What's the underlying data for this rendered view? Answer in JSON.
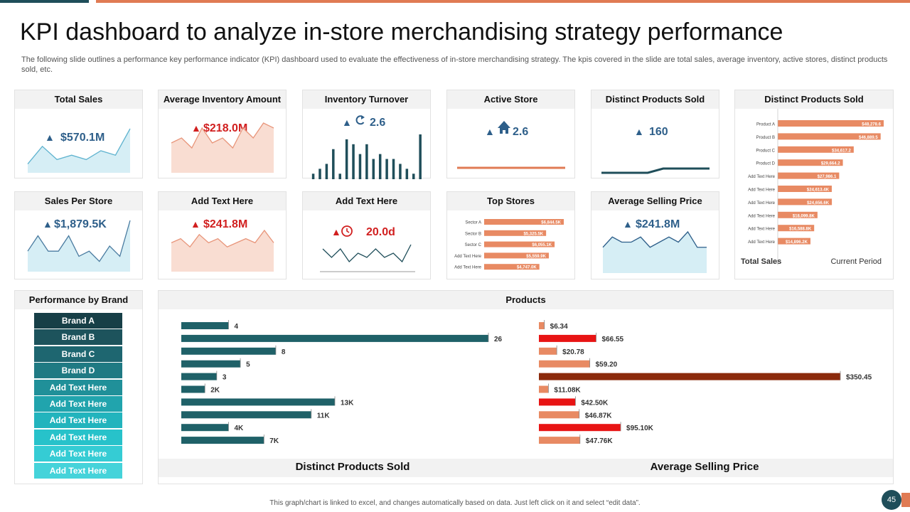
{
  "page": {
    "title": "KPI dashboard to analyze in-store merchandising strategy performance",
    "subtitle": "The following slide outlines a performance key performance indicator (KPI) dashboard used to evaluate the effectiveness of in-store merchandising strategy. The kpis covered in the slide are total sales, average inventory, active stores, distinct products sold, etc.",
    "footer_note": "This graph/chart is linked to excel, and changes automatically based on data. Just left click on it and select “edit data”.",
    "page_number": "45"
  },
  "colors": {
    "dark_teal": "#1f4e5a",
    "accent_orange": "#e07b54",
    "kpi_blue": "#2e5f8a",
    "kpi_red": "#d11f1f",
    "light_blue_fill": "#d6eef5",
    "light_peach_fill": "#f9ddd2",
    "dark_red": "#8b2a0c"
  },
  "cards": {
    "total_sales": {
      "title": "Total Sales",
      "value": "$570.1M",
      "arrow": "▲"
    },
    "avg_inventory": {
      "title": "Average Inventory Amount",
      "value": "$218.0M",
      "arrow": "▲"
    },
    "inventory_turnover": {
      "title": "Inventory Turnover",
      "value": "2.6",
      "arrow": "▲",
      "icon": "refresh-icon"
    },
    "active_store": {
      "title": "Active Store",
      "value": "2.6",
      "arrow": "▲",
      "icon": "home-icon"
    },
    "distinct_products": {
      "title": "Distinct Products Sold",
      "value": "160",
      "arrow": "▲"
    },
    "sales_per_store": {
      "title": "Sales Per Store",
      "value": "$1,879.5K",
      "arrow": "▲"
    },
    "add_text_1": {
      "title": "Add Text Here",
      "value": "$241.8M",
      "arrow": "▲"
    },
    "add_text_2": {
      "title": "Add Text Here",
      "value": "20.0d",
      "arrow": "▲",
      "icon": "clock-icon"
    },
    "top_stores": {
      "title": "Top Stores"
    },
    "avg_selling_price": {
      "title": "Average Selling Price",
      "value": "$241.8M",
      "arrow": "▲"
    },
    "distinct_products_list": {
      "title": "Distinct Products Sold",
      "footer_left": "Total Sales",
      "footer_right": "Current Period"
    },
    "performance_by_brand": {
      "title": "Performance by Brand"
    },
    "products": {
      "title": "Products",
      "left_label": "Distinct Products Sold",
      "right_label": "Average Selling Price"
    }
  },
  "brands": [
    "Brand A",
    "Brand B",
    "Brand C",
    "Brand D",
    "Add Text Here",
    "Add Text Here",
    "Add Text Here",
    "Add Text Here",
    "Add Text Here",
    "Add Text Here"
  ],
  "brand_colors": [
    "#173f47",
    "#1d535c",
    "#1e6670",
    "#1f7a83",
    "#209099",
    "#21a4ad",
    "#22b4bd",
    "#27c2ca",
    "#35ccd4",
    "#45d3da"
  ],
  "chart_data": [
    {
      "id": "total_sales_spark",
      "type": "area",
      "values": [
        2,
        6,
        3,
        4,
        3,
        5,
        4,
        10
      ]
    },
    {
      "id": "avg_inventory_spark",
      "type": "area",
      "values": [
        6,
        7,
        5,
        9,
        6,
        7,
        5,
        9,
        7,
        10,
        9
      ]
    },
    {
      "id": "inventory_turnover_spark",
      "type": "bar",
      "values": [
        3,
        4,
        5,
        8,
        3,
        10,
        9,
        7,
        9,
        6,
        7,
        6,
        6,
        5,
        4,
        3,
        11
      ]
    },
    {
      "id": "active_store_spark",
      "type": "line",
      "values": [
        5,
        5,
        5,
        5,
        5,
        5
      ]
    },
    {
      "id": "distinct_products_spark",
      "type": "line",
      "values": [
        1,
        1,
        1,
        1,
        2,
        2,
        2,
        2
      ]
    },
    {
      "id": "sales_per_store_spark",
      "type": "area",
      "values": [
        4,
        7,
        4,
        4,
        7,
        3,
        4,
        2,
        5,
        3,
        10
      ]
    },
    {
      "id": "add_text_1_spark",
      "type": "area",
      "values": [
        7,
        8,
        6,
        9,
        7,
        8,
        6,
        7,
        8,
        7,
        10,
        7
      ]
    },
    {
      "id": "add_text_2_spark",
      "type": "line",
      "values": [
        5,
        3,
        5,
        2,
        4,
        3,
        5,
        3,
        4,
        2,
        6
      ]
    },
    {
      "id": "avg_selling_price_spark",
      "type": "area",
      "values": [
        5,
        7,
        6,
        6,
        7,
        5,
        6,
        7,
        6,
        8,
        5,
        5
      ]
    },
    {
      "id": "top_stores",
      "type": "bar",
      "categories": [
        "Sector A",
        "Sector B",
        "Sector C",
        "Add Text Here",
        "Add Text Here"
      ],
      "values": [
        6844.5,
        5325.5,
        6055.1,
        5559.9,
        4747.0
      ],
      "labels": [
        "$6,844.5K",
        "$5,325.5K",
        "$6,055.1K",
        "$5,559.9K",
        "$4,747.0K"
      ]
    },
    {
      "id": "distinct_products_list",
      "type": "bar",
      "categories": [
        "Product A",
        "Product B",
        "Product C",
        "Product D",
        "Add Text Here",
        "Add Text Here",
        "Add Text Here",
        "Add Text Here",
        "Add Text Here",
        "Add Text Here"
      ],
      "values": [
        48278.6,
        46889.5,
        34617.2,
        29664.2,
        27986.1,
        24613.4,
        24656.6,
        18099.8,
        16588.8,
        14896.2
      ],
      "labels": [
        "$48,278.6",
        "$46,889.5",
        "$34,617.2",
        "$29,664.2",
        "$27,986.1",
        "$24,613.4K",
        "$24,656.6K",
        "$18,099.8K",
        "$16,588.8K",
        "$14,896.2K"
      ]
    },
    {
      "id": "products_distinct",
      "type": "bar",
      "title": "Distinct Products Sold",
      "values": [
        4,
        26,
        8,
        5,
        3,
        2,
        13,
        11,
        4,
        7
      ],
      "labels": [
        "4",
        "26",
        "8",
        "5",
        "3",
        "2K",
        "13K",
        "11K",
        "4K",
        "7K"
      ]
    },
    {
      "id": "products_price",
      "type": "bar",
      "title": "Average Selling Price",
      "values": [
        6.34,
        66.55,
        20.78,
        59.2,
        350.45,
        11.08,
        42.5,
        46.87,
        95.1,
        47.76
      ],
      "labels": [
        "$6.34",
        "$66.55",
        "$20.78",
        "$59.20",
        "$350.45",
        "$11.08K",
        "$42.50K",
        "$46.87K",
        "$95.10K",
        "$47.76K"
      ],
      "bar_colors": [
        "#e88a63",
        "#e81414",
        "#e88a63",
        "#e88a63",
        "#8b2a0c",
        "#e88a63",
        "#e81414",
        "#e88a63",
        "#e81414",
        "#e88a63"
      ]
    }
  ]
}
